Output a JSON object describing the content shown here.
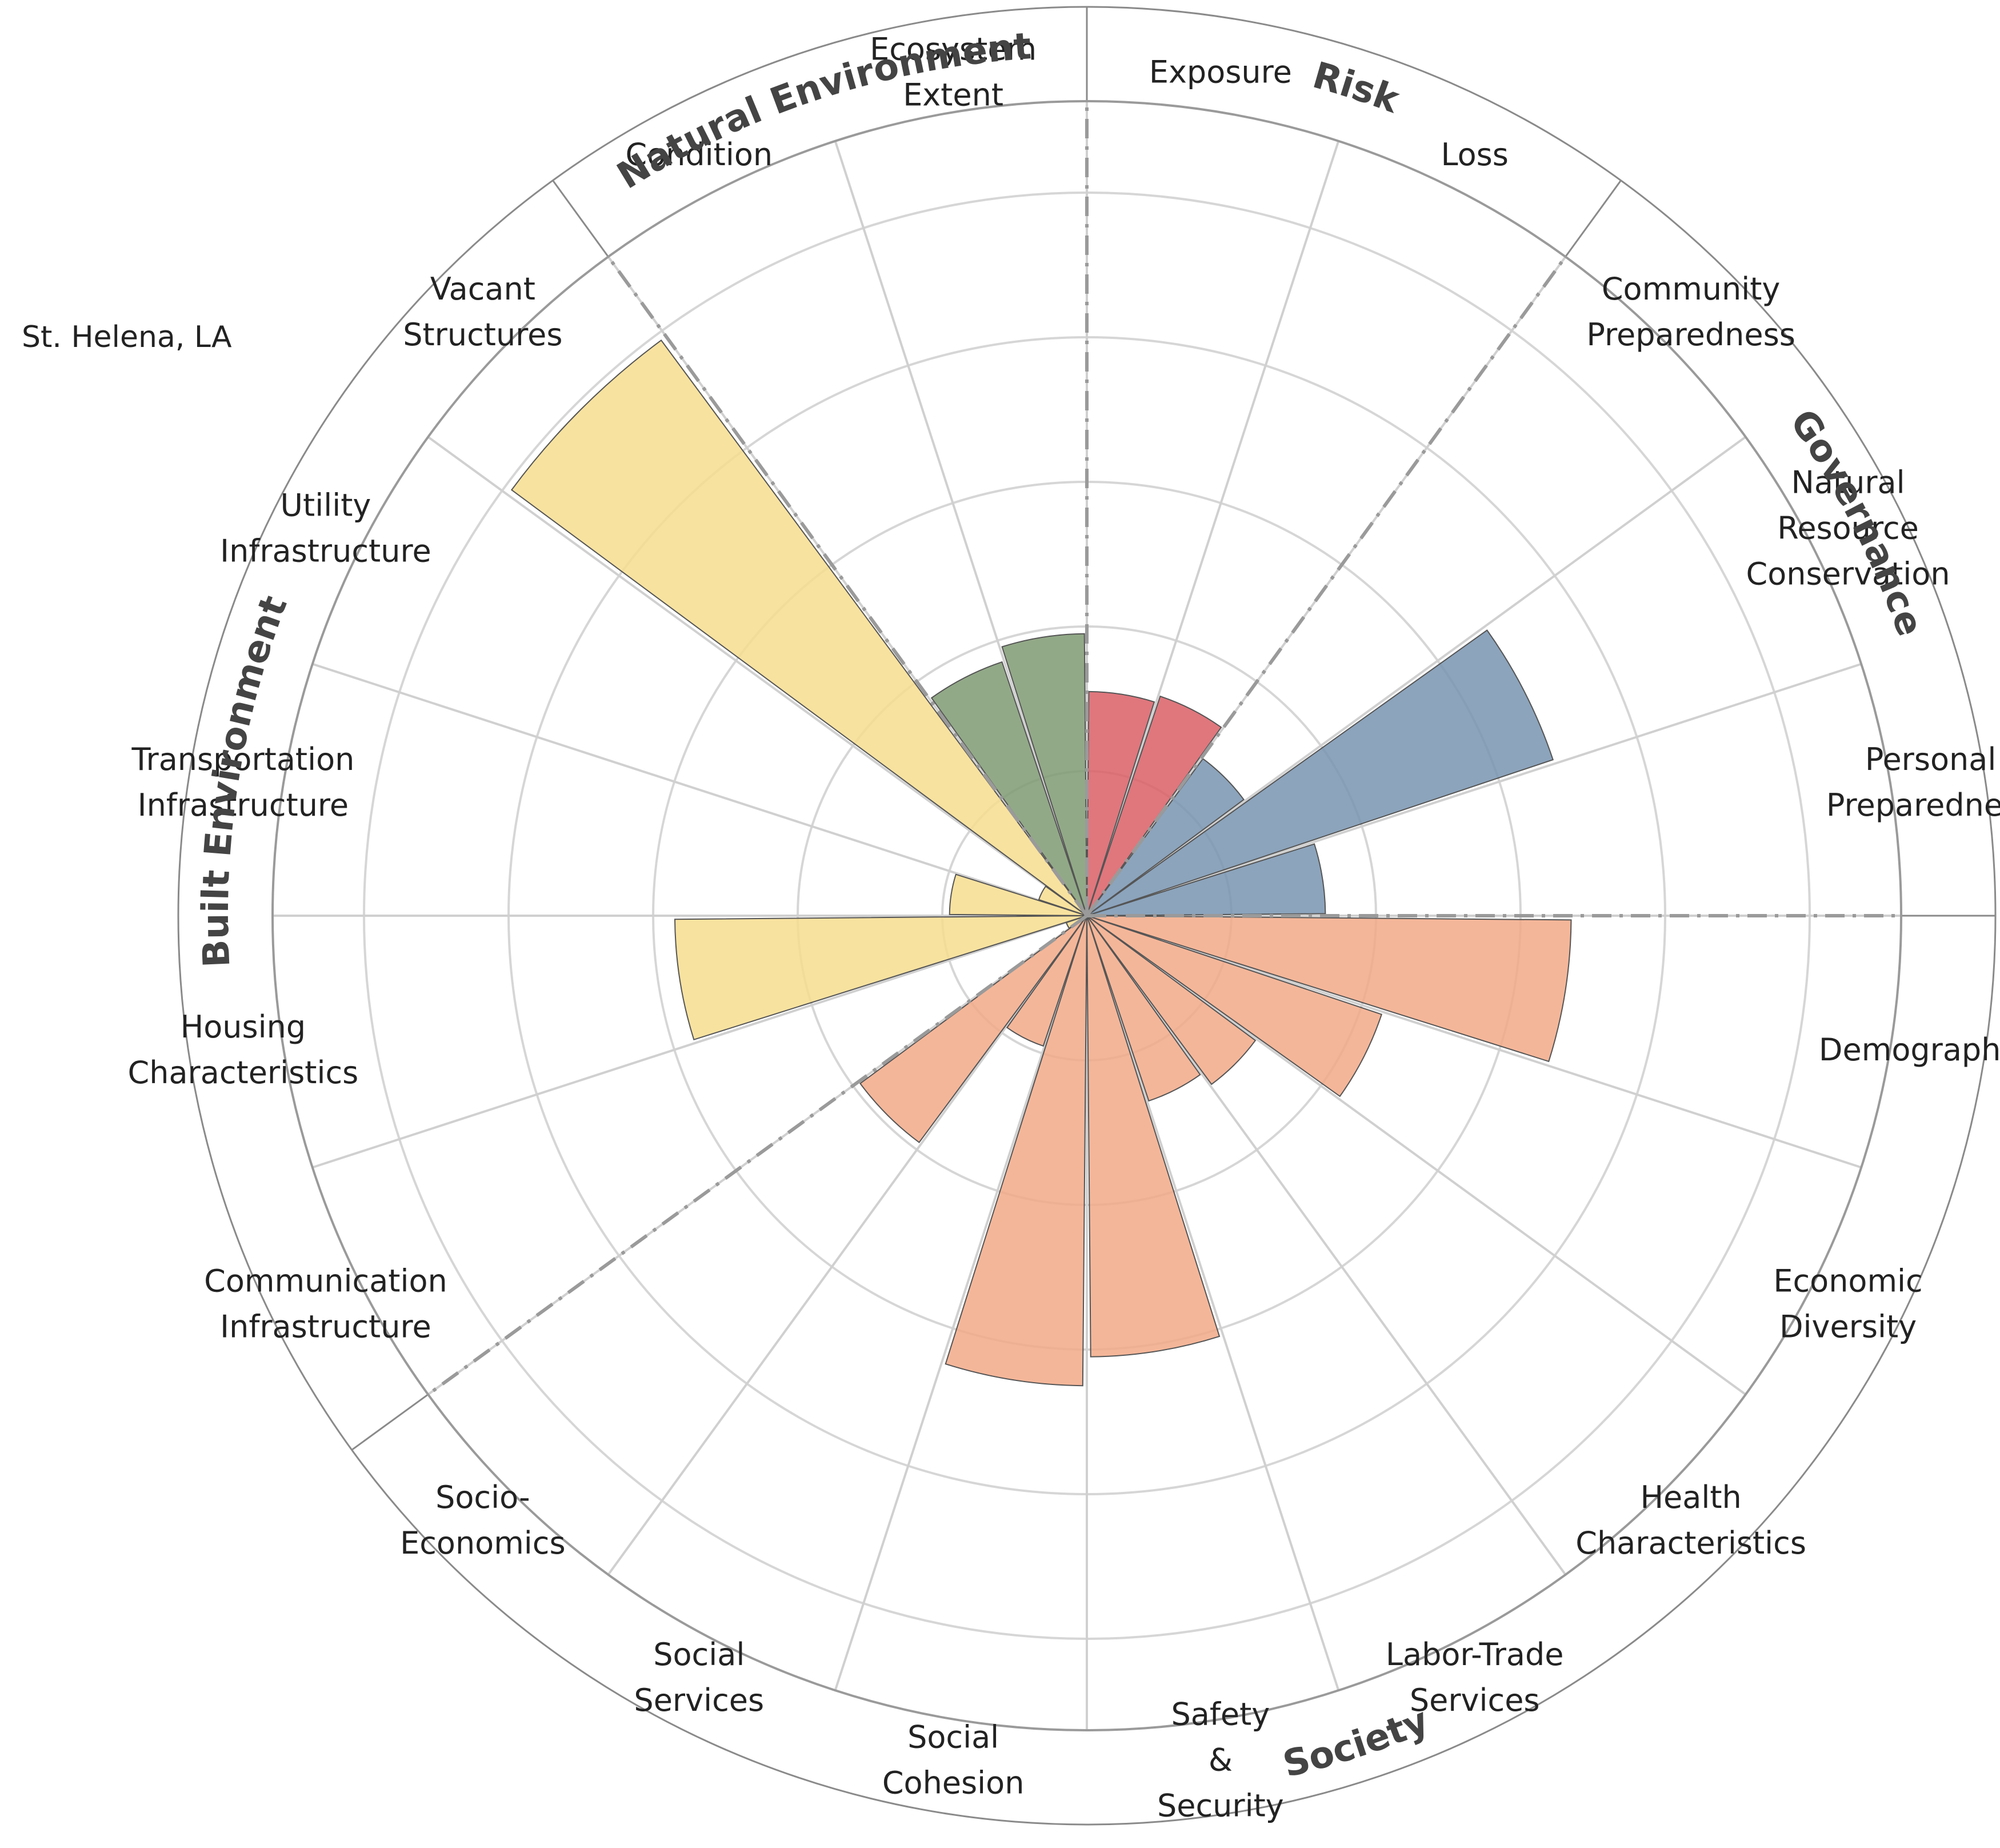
{
  "region": "St. Helena, LA",
  "chart_data": {
    "type": "polar-bar",
    "title": "St. Helena, LA",
    "rmax": 5,
    "rings": [
      1,
      2,
      3,
      4,
      5
    ],
    "groups": [
      {
        "name": "Natural Environment",
        "color": "#7f9a72"
      },
      {
        "name": "Risk",
        "color": "#d95f66"
      },
      {
        "name": "Governance",
        "color": "#7894b0"
      },
      {
        "name": "Society",
        "color": "#f2a987"
      },
      {
        "name": "Built Environment",
        "color": "#f7dd8e"
      }
    ],
    "categories": [
      {
        "lines": [
          "Exposure"
        ],
        "group": "Risk",
        "value": 1.55
      },
      {
        "lines": [
          "Loss"
        ],
        "group": "Risk",
        "value": 1.6
      },
      {
        "lines": [
          "Community",
          "Preparedness"
        ],
        "group": "Governance",
        "value": 1.35
      },
      {
        "lines": [
          "Natural",
          "Resource",
          "Conservation"
        ],
        "group": "Governance",
        "value": 3.4
      },
      {
        "lines": [
          "Personal",
          "Preparedness"
        ],
        "group": "Governance",
        "value": 1.65
      },
      {
        "lines": [
          "Demographics"
        ],
        "group": "Society",
        "value": 3.35
      },
      {
        "lines": [
          "Economic",
          "Diversity"
        ],
        "group": "Society",
        "value": 2.15
      },
      {
        "lines": [
          "Health",
          "Characteristics"
        ],
        "group": "Society",
        "value": 1.45
      },
      {
        "lines": [
          "Labor-Trade",
          "Services"
        ],
        "group": "Society",
        "value": 1.35
      },
      {
        "lines": [
          "Safety",
          "&",
          "Security"
        ],
        "group": "Society",
        "value": 3.05
      },
      {
        "lines": [
          "Social",
          "Cohesion"
        ],
        "group": "Society",
        "value": 3.25
      },
      {
        "lines": [
          "Social",
          "Services"
        ],
        "group": "Society",
        "value": 0.95
      },
      {
        "lines": [
          "Socio-",
          "Economics"
        ],
        "group": "Society",
        "value": 1.95
      },
      {
        "lines": [
          "Communication",
          "Infrastructure"
        ],
        "group": "Built Environment",
        "value": 0.15
      },
      {
        "lines": [
          "Housing",
          "Characteristics"
        ],
        "group": "Built Environment",
        "value": 2.85
      },
      {
        "lines": [
          "Transportation",
          "Infrastructure"
        ],
        "group": "Built Environment",
        "value": 0.95
      },
      {
        "lines": [
          "Utility",
          "Infrastructure"
        ],
        "group": "Built Environment",
        "value": 0.35
      },
      {
        "lines": [
          "Vacant",
          "Structures"
        ],
        "group": "Built Environment",
        "value": 4.95
      },
      {
        "lines": [
          "Condition"
        ],
        "group": "Natural Environment",
        "value": 1.85
      },
      {
        "lines": [
          "Ecosystem",
          "Extent"
        ],
        "group": "Natural Environment",
        "value": 1.95
      }
    ]
  }
}
